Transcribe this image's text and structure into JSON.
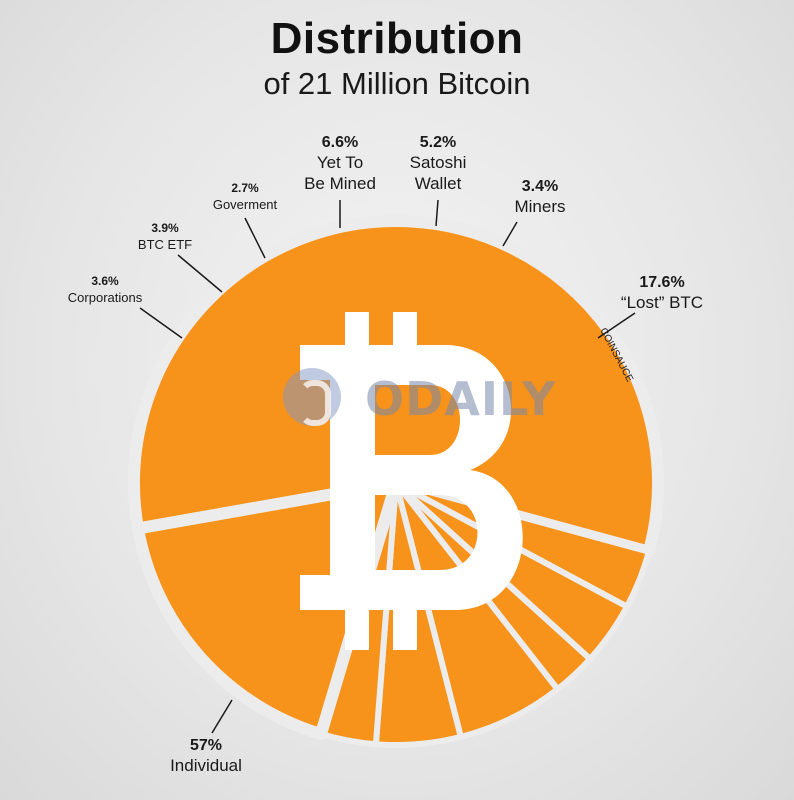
{
  "page": {
    "title": "Distribution",
    "subtitle": "of 21 Million Bitcoin",
    "watermark": "ODAILY",
    "credit": "COINSAUCE"
  },
  "colors": {
    "slice": "#f7931a",
    "gap": "#ececec",
    "bitcoin_symbol": "#ffffff",
    "text": "#1a1a1a"
  },
  "chart_data": {
    "type": "pie",
    "categories": [
      "Individual",
      "Corporations",
      "BTC ETF",
      "Goverment",
      "Yet To Be Mined",
      "Satoshi Wallet",
      "Miners",
      "“Lost” BTC"
    ],
    "values": [
      57,
      3.6,
      3.9,
      2.7,
      6.6,
      5.2,
      3.4,
      17.6
    ],
    "unit": "%",
    "labels": [
      {
        "pct": "57%",
        "name": [
          "Individual"
        ]
      },
      {
        "pct": "3.6%",
        "name": [
          "Corporations"
        ]
      },
      {
        "pct": "3.9%",
        "name": [
          "BTC ETF"
        ]
      },
      {
        "pct": "2.7%",
        "name": [
          "Goverment"
        ]
      },
      {
        "pct": "6.6%",
        "name": [
          "Yet To",
          "Be Mined"
        ]
      },
      {
        "pct": "5.2%",
        "name": [
          "Satoshi",
          "Wallet"
        ]
      },
      {
        "pct": "3.4%",
        "name": [
          "Miners"
        ]
      },
      {
        "pct": "17.6%",
        "name": [
          "“Lost” BTC"
        ]
      }
    ],
    "legend": "none"
  }
}
